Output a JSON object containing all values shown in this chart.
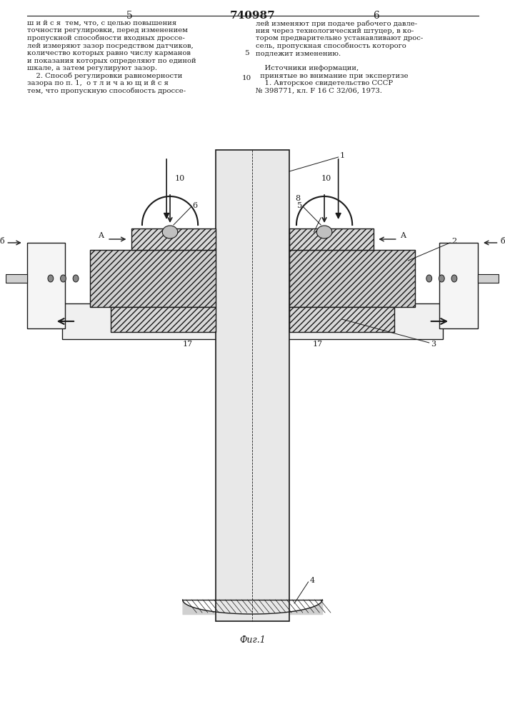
{
  "title": "740987",
  "page_left": "5",
  "page_right": "6",
  "fig_label": "Фиг.1",
  "text_left": "ш и й с я  тем, что, с целью повышения\nточности регулировки, перед изменением\nпропускной способности входных дроссе-\nлей измеряют зазор посредством датчиков,\nколичество которых равно числу карманов\nи показания которых определяют по единой\nшкале, а затем регулируют зазор.\n    2. Способ регулировки равномерности\nзазора по п. 1,  о т л и ч а ю щ и й с я\nтем, что пропускную способность дроссе-",
  "text_right": "лей изменяют при подаче рабочего давле-\nния через технологический штуцер, в ко-\nтором предварительно устанавливают дрос-\nсель, пропускная способность которого\nподлежит изменению.\n\n    Источники информации,\n  принятые во внимание при экспертизе\n    1. Авторское свидетельство СССР\n№ 398771, кл. F 16 C 32/06, 1973.",
  "line_number_5": "5",
  "line_number_10": "10",
  "bg_color": "#ffffff",
  "line_color": "#1a1a1a",
  "hatch_color": "#1a1a1a",
  "text_color": "#1a1a1a"
}
